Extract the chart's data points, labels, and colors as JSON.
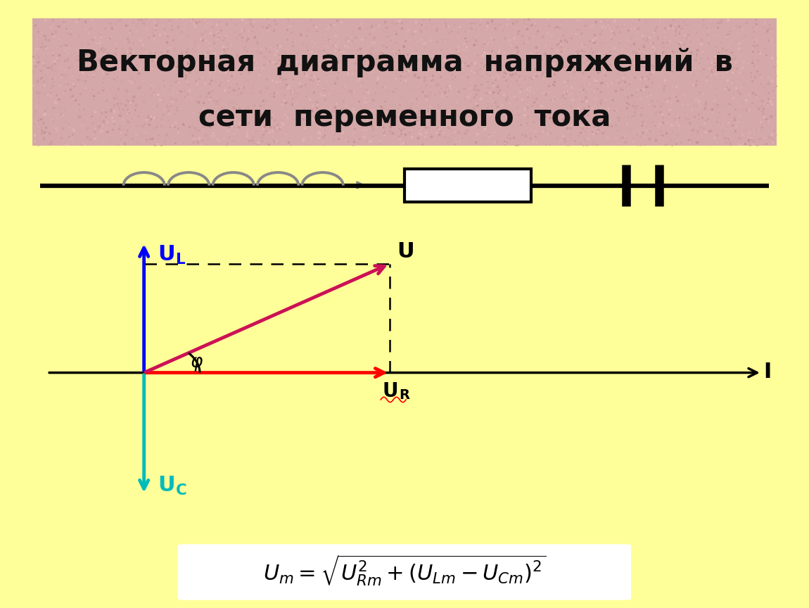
{
  "bg_color": "#FFFF99",
  "title_bg_color": "#D4A8A8",
  "title_text_line1": "Векторная  диаграмма  напряжений  в",
  "title_text_line2": "сети  переменного  тока",
  "title_fontsize": 30,
  "diagram_bg": "#FFFFFF",
  "formula": "$U_m = \\sqrt{U_{Rm}^2 + (U_{Lm} - U_{Cm})^2}$",
  "formula_fontsize": 22,
  "blue_color": "#0000FF",
  "teal_color": "#00BBBB",
  "red_color": "#FF0000",
  "magenta_color": "#CC1155",
  "black_color": "#000000",
  "gray_color": "#888888"
}
